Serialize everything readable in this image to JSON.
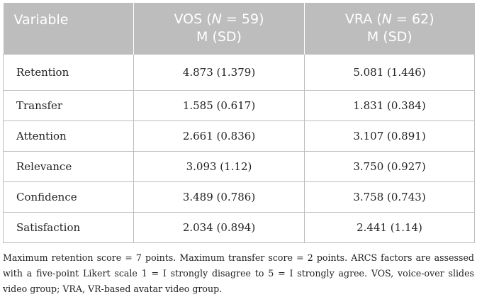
{
  "table": {
    "headers": {
      "variable": "Variable",
      "vos": {
        "group": "VOS",
        "n_label": "N",
        "n_value": "59",
        "stats": "M (SD)"
      },
      "vra": {
        "group": "VRA",
        "n_label": "N",
        "n_value": "62",
        "stats": "M (SD)"
      }
    },
    "rows": [
      {
        "variable": "Retention",
        "vos": "4.873 (1.379)",
        "vra": "5.081 (1.446)"
      },
      {
        "variable": "Transfer",
        "vos": "1.585 (0.617)",
        "vra": "1.831 (0.384)"
      },
      {
        "variable": "Attention",
        "vos": "2.661 (0.836)",
        "vra": "3.107 (0.891)"
      },
      {
        "variable": "Relevance",
        "vos": "3.093 (1.12)",
        "vra": "3.750 (0.927)"
      },
      {
        "variable": "Confidence",
        "vos": "3.489 (0.786)",
        "vra": "3.758 (0.743)"
      },
      {
        "variable": "Satisfaction",
        "vos": "2.034 (0.894)",
        "vra": "2.441 (1.14)"
      }
    ]
  },
  "footnote": "Maximum retention score = 7 points. Maximum transfer score = 2 points. ARCS factors are assessed with a five-point Likert scale 1 = I strongly disagree to 5 = I strongly agree. VOS, voice-over slides video group; VRA, VR-based avatar video group.",
  "colors": {
    "header_bg": "#bdbdbd",
    "header_text": "#ffffff",
    "grid": "#bdbdbd",
    "body_text": "#222222"
  }
}
